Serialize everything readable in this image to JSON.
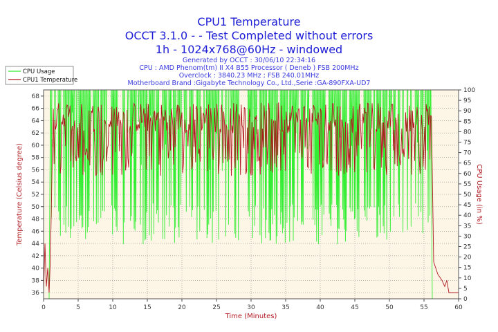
{
  "chart_data": {
    "type": "line",
    "title": "CPU1 Temperature",
    "subtitle_lines": [
      "OCCT 3.1.0 -  - Test Completed without errors",
      "1h - 1024x768@60Hz - windowed"
    ],
    "info_lines": [
      "Generated by OCCT : 30/06/10 22:34:16",
      "CPU : AMD Phenom(tm) II X4 B55 Processor ( Deneb ) FSB 200MHz",
      "Overclock : 3840.23 MHz ; FSB 240.01MHz",
      "Motherboard Brand :Gigabyte Technology Co., Ltd.,Serie :GA-890FXA-UD7"
    ],
    "xlabel": "Time (Minutes)",
    "ylabel_left": "Temperature (Celsius degree)",
    "ylabel_right": "CPU Usage (in %)",
    "xlim": [
      0,
      60
    ],
    "xticks": [
      0,
      5,
      10,
      15,
      20,
      25,
      30,
      35,
      40,
      45,
      50,
      55,
      60
    ],
    "ylim_left": [
      35,
      69
    ],
    "yticks_left": [
      36,
      38,
      40,
      42,
      44,
      46,
      48,
      50,
      52,
      54,
      56,
      58,
      60,
      62,
      64,
      66,
      68
    ],
    "ylim_right": [
      0,
      100
    ],
    "yticks_right": [
      0,
      5,
      10,
      15,
      20,
      25,
      30,
      35,
      40,
      45,
      50,
      55,
      60,
      65,
      70,
      75,
      80,
      85,
      90,
      95,
      100
    ],
    "legend": {
      "position": "top-left",
      "entries": [
        "CPU Usage",
        "CPU1 Temperature"
      ]
    },
    "series": [
      {
        "name": "CPU Usage",
        "axis": "right",
        "color": "#33ee33",
        "description": "Load test: ~0% idle until 0.8 min, then oscillates between ~25-45% and 100% until ~56 min, drops to 0%",
        "points": [
          [
            0,
            0
          ],
          [
            0.8,
            0
          ],
          [
            1.0,
            100
          ],
          [
            56.0,
            100
          ],
          [
            56.2,
            0
          ],
          [
            60,
            0
          ]
        ]
      },
      {
        "name": "CPU1 Temperature",
        "axis": "left",
        "color": "#b0171f",
        "description": "Idle ~36-44 C, rises to ~58-67 C band during the test, falls back to ~36-41 C after 56 min",
        "points": [
          [
            0,
            36
          ],
          [
            0.2,
            44
          ],
          [
            0.4,
            37
          ],
          [
            0.6,
            40
          ],
          [
            0.8,
            36
          ],
          [
            1.0,
            42
          ],
          [
            1.3,
            61
          ],
          [
            2,
            63
          ],
          [
            5,
            64
          ],
          [
            10,
            64
          ],
          [
            15,
            64
          ],
          [
            20,
            64
          ],
          [
            25,
            64
          ],
          [
            30,
            64
          ],
          [
            35,
            64
          ],
          [
            40,
            64
          ],
          [
            45,
            64
          ],
          [
            50,
            64
          ],
          [
            55,
            64
          ],
          [
            56.1,
            63
          ],
          [
            56.4,
            41
          ],
          [
            57.0,
            39
          ],
          [
            57.6,
            38
          ],
          [
            58.0,
            37
          ],
          [
            58.3,
            38
          ],
          [
            58.6,
            36
          ],
          [
            60,
            36
          ]
        ]
      }
    ],
    "colors": {
      "title": "#1d1dd6",
      "info": "#3a3adf",
      "axis_label": "#b0171f",
      "plot_bg": "#fdf5e6",
      "grid": "#8c8c8c"
    }
  }
}
